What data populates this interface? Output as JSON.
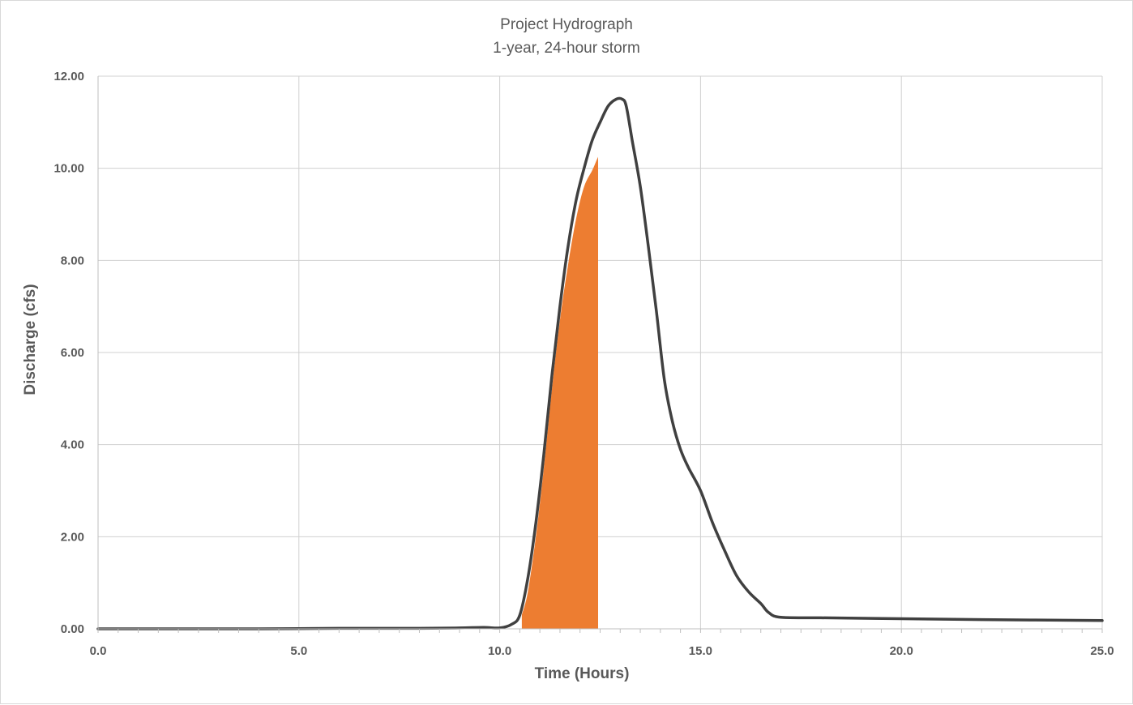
{
  "chart_data": {
    "type": "area",
    "title": "Project Hydrograph",
    "subtitle": "1-year, 24-hour storm",
    "xlabel": "Time (Hours)",
    "ylabel": "Discharge (cfs)",
    "xlim": [
      0,
      25
    ],
    "ylim": [
      0,
      12
    ],
    "x_ticks": [
      0,
      5,
      10,
      15,
      20,
      25
    ],
    "x_tick_labels": [
      "0.0",
      "5.0",
      "10.0",
      "15.0",
      "20.0",
      "25.0"
    ],
    "y_ticks": [
      0,
      2,
      4,
      6,
      8,
      10,
      12
    ],
    "y_tick_labels": [
      "0.00",
      "2.00",
      "4.00",
      "6.00",
      "8.00",
      "10.00",
      "12.00"
    ],
    "grid": true,
    "legend": "none",
    "series": [
      {
        "style": "line",
        "color": "#404040",
        "x": [
          0,
          2,
          4,
          6,
          8,
          9,
          9.6,
          10.0,
          10.3,
          10.5,
          10.7,
          10.9,
          11.1,
          11.3,
          11.5,
          11.7,
          11.9,
          12.1,
          12.3,
          12.5,
          12.7,
          12.9,
          13.05,
          13.15,
          13.3,
          13.5,
          13.7,
          13.9,
          14.1,
          14.3,
          14.5,
          14.7,
          15.0,
          15.3,
          15.6,
          15.9,
          16.2,
          16.5,
          16.7,
          17.0,
          18,
          20,
          22,
          25
        ],
        "y": [
          0.0,
          0.0,
          0.0,
          0.01,
          0.01,
          0.02,
          0.03,
          0.02,
          0.1,
          0.3,
          1.1,
          2.3,
          3.8,
          5.5,
          7.0,
          8.3,
          9.3,
          10.0,
          10.6,
          11.0,
          11.35,
          11.5,
          11.5,
          11.35,
          10.6,
          9.6,
          8.3,
          6.9,
          5.4,
          4.5,
          3.9,
          3.5,
          3.0,
          2.3,
          1.7,
          1.15,
          0.8,
          0.55,
          0.35,
          0.25,
          0.24,
          0.22,
          0.2,
          0.18
        ]
      },
      {
        "style": "fill",
        "color": "#ed7d31",
        "x": [
          10.55,
          10.7,
          10.9,
          11.1,
          11.3,
          11.5,
          11.7,
          11.9,
          12.1,
          12.3,
          12.4,
          12.45
        ],
        "y": [
          0.3,
          0.8,
          2.0,
          3.5,
          5.2,
          6.7,
          7.9,
          8.9,
          9.6,
          9.95,
          10.15,
          10.25
        ]
      }
    ]
  }
}
